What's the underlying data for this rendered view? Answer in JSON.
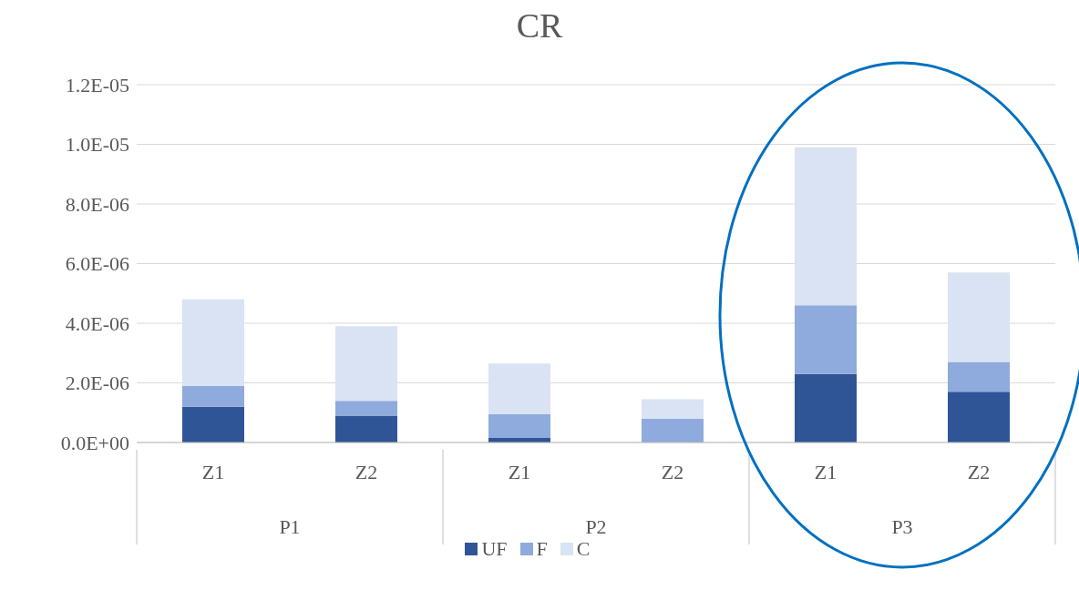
{
  "chart_data": {
    "type": "bar",
    "title": "CR",
    "categories": [
      "Z1",
      "Z2",
      "Z1",
      "Z2",
      "Z1",
      "Z2"
    ],
    "annotations": [
      "P1",
      "P2",
      "P3"
    ],
    "stacked": true,
    "series": [
      {
        "name": "UF",
        "color": "#2f5597",
        "values": [
          1.2e-06,
          9e-07,
          1.5e-07,
          0,
          2.3e-06,
          1.7e-06
        ]
      },
      {
        "name": "F",
        "color": "#8faadc",
        "values": [
          7e-07,
          5e-07,
          8e-07,
          8e-07,
          2.3e-06,
          1e-06
        ]
      },
      {
        "name": "C",
        "color": "#dae3f3",
        "values": [
          2.9e-06,
          2.5e-06,
          1.7e-06,
          6.5e-07,
          5.3e-06,
          3e-06
        ]
      }
    ],
    "ylim": [
      0,
      1.2e-05
    ],
    "yticks": [
      {
        "value": 0,
        "label": "0.0E+00"
      },
      {
        "value": 2e-06,
        "label": "2.0E-06"
      },
      {
        "value": 4e-06,
        "label": "4.0E-06"
      },
      {
        "value": 6e-06,
        "label": "6.0E-06"
      },
      {
        "value": 8e-06,
        "label": "8.0E-06"
      },
      {
        "value": 1e-05,
        "label": "1.0E-05"
      },
      {
        "value": 1.2e-05,
        "label": "1.2E-05"
      }
    ],
    "grid": "y",
    "legend": "bottom"
  }
}
